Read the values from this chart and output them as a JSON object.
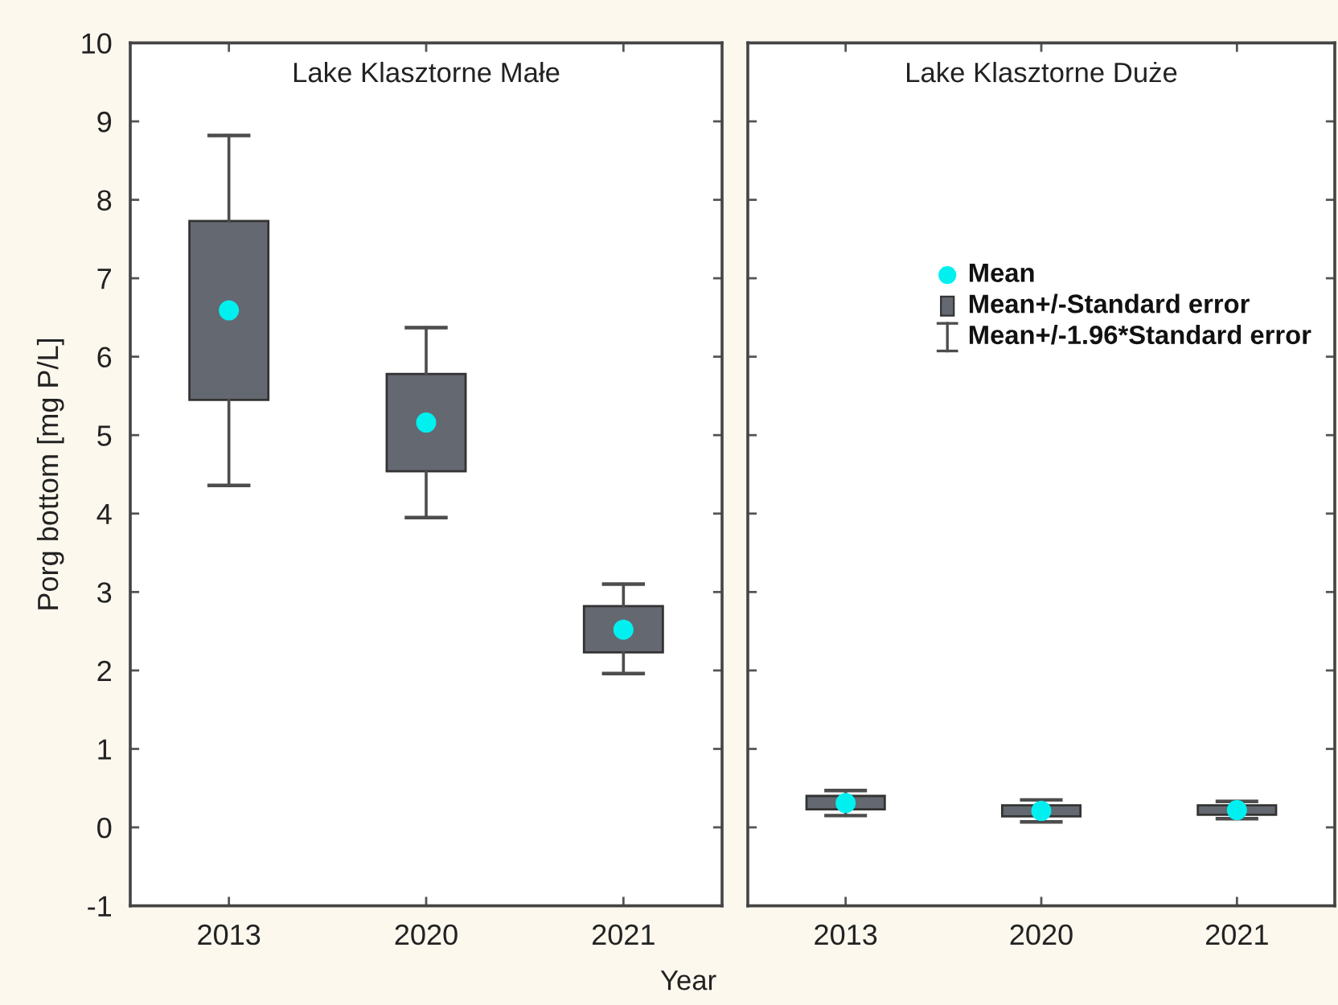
{
  "chart_data": [
    {
      "type": "box",
      "title": "Lake Klasztorne Małe",
      "ylabel": "Porg bottom [mg P/L]",
      "xlabel": "Year",
      "categories": [
        "2013",
        "2020",
        "2021"
      ],
      "color": "#646870",
      "boxes": [
        {
          "low": 4.36,
          "q1": 5.45,
          "q3": 7.73,
          "high": 8.82,
          "mean": 6.59
        },
        {
          "low": 3.95,
          "q1": 4.54,
          "q3": 5.78,
          "high": 6.37,
          "mean": 5.16
        },
        {
          "low": 1.96,
          "q1": 2.23,
          "q3": 2.82,
          "high": 3.1,
          "mean": 2.52
        }
      ],
      "ylim": [
        -1,
        10
      ],
      "yticks": [
        -1,
        0,
        1,
        2,
        3,
        4,
        5,
        6,
        7,
        8,
        9,
        10
      ]
    },
    {
      "type": "box",
      "title": "Lake Klasztorne Duże",
      "categories": [
        "2013",
        "2020",
        "2021"
      ],
      "color": "#646870",
      "boxes": [
        {
          "low": 0.15,
          "q1": 0.23,
          "q3": 0.4,
          "high": 0.47,
          "mean": 0.31
        },
        {
          "low": 0.07,
          "q1": 0.14,
          "q3": 0.28,
          "high": 0.35,
          "mean": 0.21
        },
        {
          "low": 0.11,
          "q1": 0.16,
          "q3": 0.28,
          "high": 0.33,
          "mean": 0.22
        }
      ],
      "ylim": [
        -1,
        10
      ],
      "yticks": [
        -1,
        0,
        1,
        2,
        3,
        4,
        5,
        6,
        7,
        8,
        9,
        10
      ],
      "tick_labels": "x",
      "annotations": [
        "Mean",
        "Mean+/-Standard error",
        "Mean+/-1.96*Standard error"
      ]
    }
  ]
}
